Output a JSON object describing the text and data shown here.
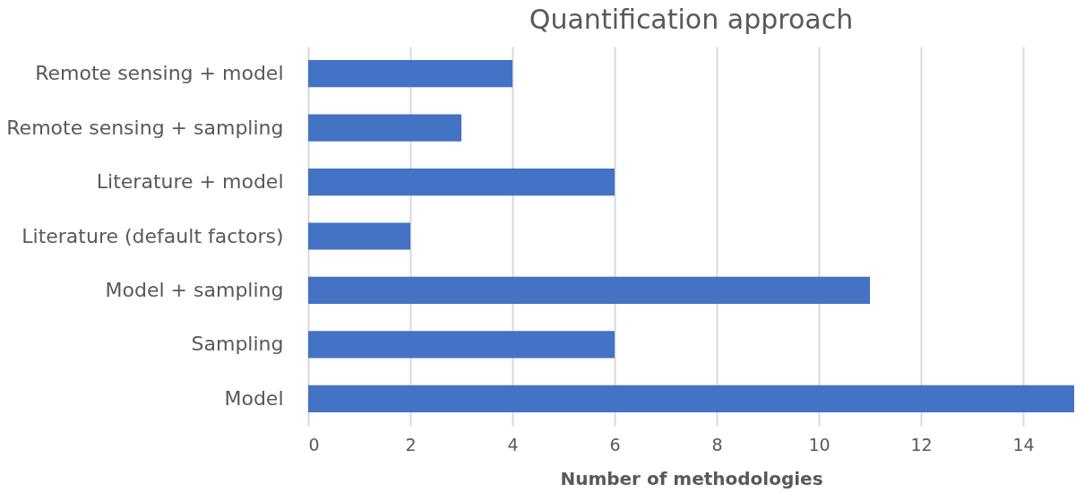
{
  "chart_data": {
    "type": "bar",
    "orientation": "horizontal",
    "title": "Quantification approach",
    "xlabel": "Number of methodologies",
    "categories": [
      "Remote sensing + model",
      "Remote sensing + sampling",
      "Literature + model",
      "Literature (default factors)",
      "Model + sampling",
      "Sampling",
      "Model"
    ],
    "values": [
      4,
      3,
      6,
      2,
      11,
      6,
      15
    ],
    "color": "#4472c4",
    "xlim": [
      0,
      15
    ],
    "xticks": [
      0,
      2,
      4,
      6,
      8,
      10,
      12,
      14
    ],
    "grid": "x"
  }
}
